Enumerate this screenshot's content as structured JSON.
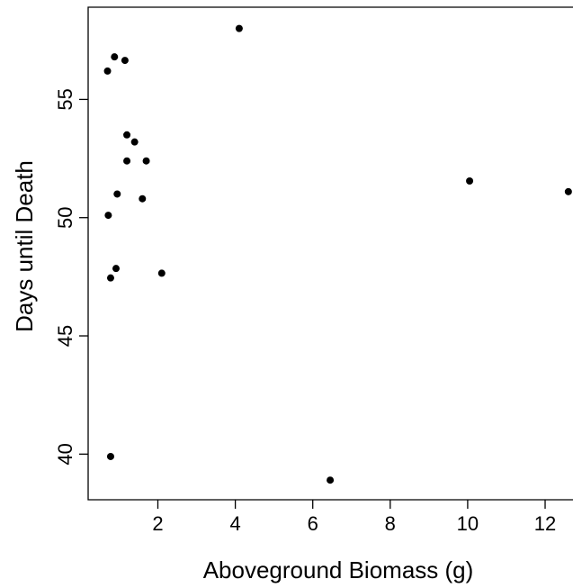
{
  "chart_data": {
    "type": "scatter",
    "title": "",
    "xlabel": "Aboveground Biomass (g)",
    "ylabel": "Days until Death",
    "x_ticks": [
      2,
      4,
      6,
      8,
      10,
      12
    ],
    "y_ticks": [
      40,
      45,
      50,
      55
    ],
    "xlim": [
      0.2,
      12.65
    ],
    "ylim": [
      38.07,
      58.9
    ],
    "grid": false,
    "legend": "none",
    "marker_color": "#000000",
    "points": [
      {
        "x": 0.7,
        "y": 56.2
      },
      {
        "x": 0.88,
        "y": 56.8
      },
      {
        "x": 1.15,
        "y": 56.65
      },
      {
        "x": 4.1,
        "y": 58.0
      },
      {
        "x": 1.2,
        "y": 53.5
      },
      {
        "x": 1.4,
        "y": 53.2
      },
      {
        "x": 1.2,
        "y": 52.4
      },
      {
        "x": 1.7,
        "y": 52.4
      },
      {
        "x": 0.95,
        "y": 51.0
      },
      {
        "x": 1.6,
        "y": 50.8
      },
      {
        "x": 0.72,
        "y": 50.1
      },
      {
        "x": 0.92,
        "y": 47.85
      },
      {
        "x": 0.78,
        "y": 47.45
      },
      {
        "x": 2.1,
        "y": 47.65
      },
      {
        "x": 10.05,
        "y": 51.55
      },
      {
        "x": 12.6,
        "y": 51.1
      },
      {
        "x": 0.78,
        "y": 39.9
      },
      {
        "x": 6.45,
        "y": 38.9
      }
    ]
  }
}
